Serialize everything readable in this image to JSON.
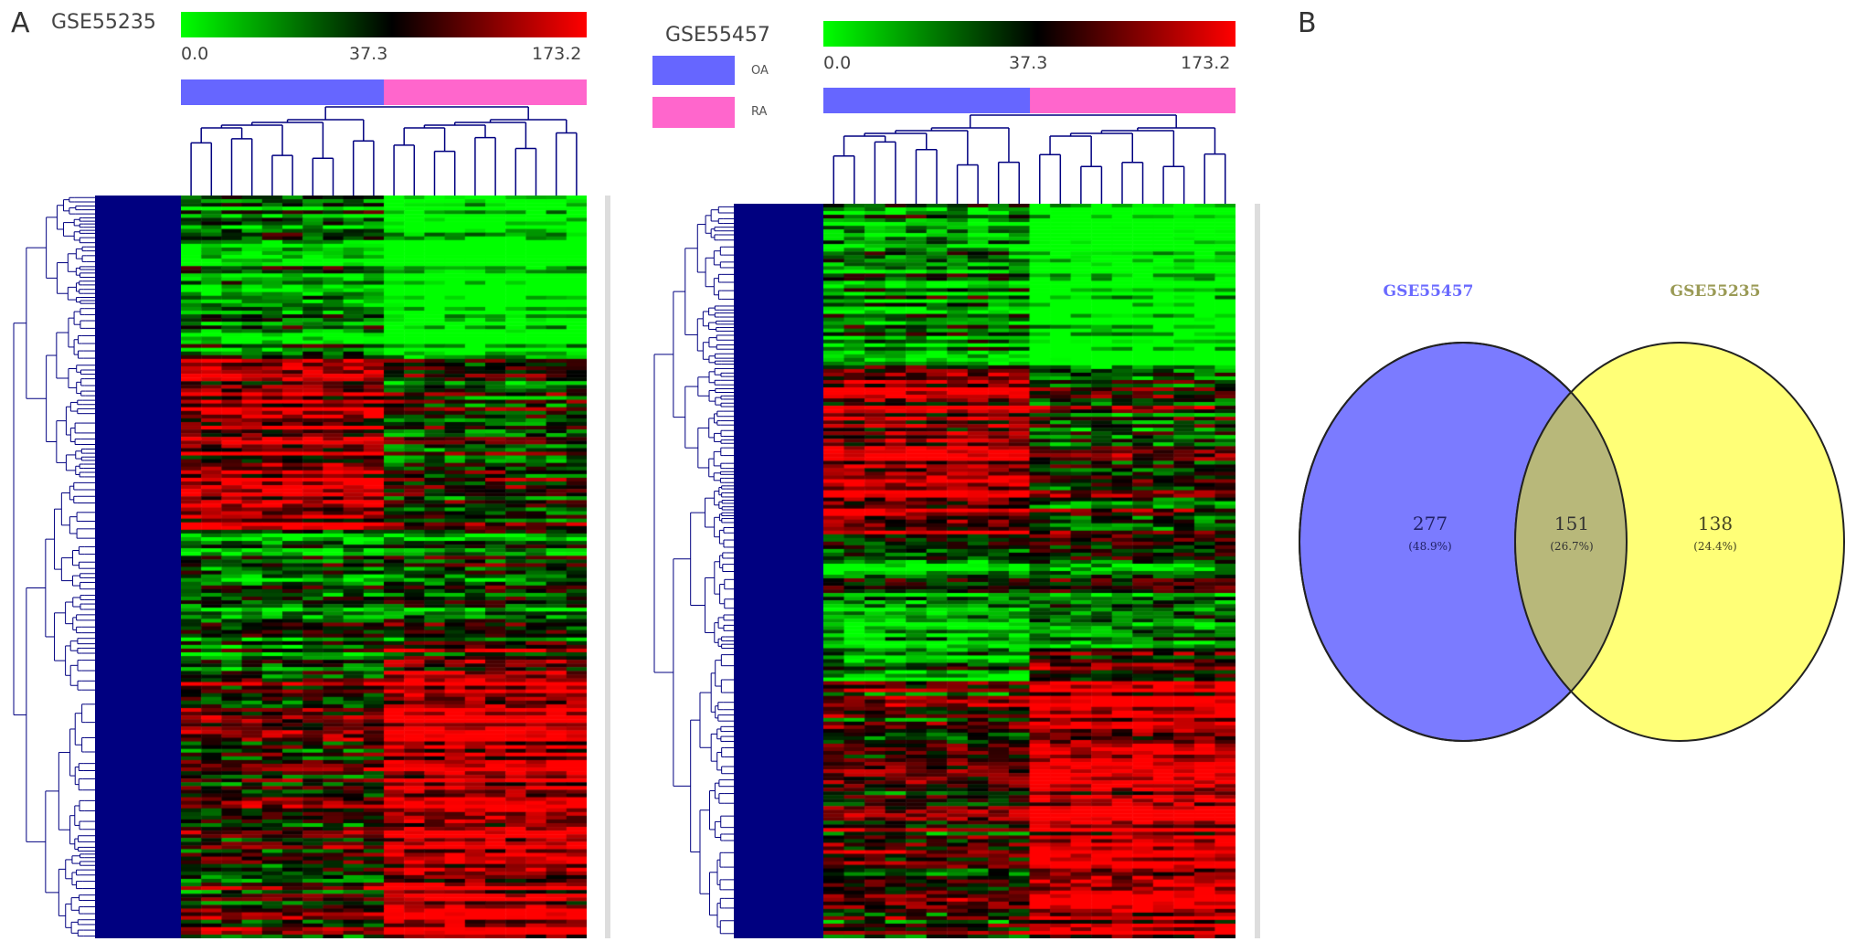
{
  "panel_a": {
    "letter": "A",
    "legend": {
      "oa_label": "OA",
      "ra_label": "RA",
      "oa_color": "#6666ff",
      "ra_color": "#ff66cc"
    },
    "heatmaps": [
      {
        "title": "GSE55235",
        "scale_min": "0.0",
        "scale_mid": "37.3",
        "scale_max": "173.2",
        "oa_fraction": 0.5,
        "columns": 20
      },
      {
        "title": "GSE55457",
        "scale_min": "0.0",
        "scale_mid": "37.3",
        "scale_max": "173.2",
        "oa_fraction": 0.5,
        "columns": 20
      }
    ],
    "colors": {
      "low": "#00ff00",
      "mid": "#000000",
      "high": "#ff0000",
      "dendrogram": "#000080"
    }
  },
  "panel_b": {
    "letter": "B",
    "left_set": {
      "name": "GSE55457",
      "only": "277",
      "pct": "(48.9%)",
      "color": "#7b7bff",
      "label_color": "#6a6aff"
    },
    "right_set": {
      "name": "GSE55235",
      "only": "138",
      "pct": "(24.4%)",
      "color": "#ffff77",
      "label_color": "#9a9a55"
    },
    "overlap": {
      "count": "151",
      "pct": "(26.7%)",
      "color": "#b8b87a"
    }
  },
  "chart_data": {
    "type": "heatmap",
    "venn": {
      "sets": [
        "GSE55457",
        "GSE55235"
      ],
      "GSE55457_only": 277,
      "overlap": 151,
      "GSE55235_only": 138,
      "percent": [
        48.9,
        26.7,
        24.4
      ]
    },
    "heatmap_scale": [
      0.0,
      37.3,
      173.2
    ],
    "groups": [
      "OA",
      "RA"
    ]
  }
}
